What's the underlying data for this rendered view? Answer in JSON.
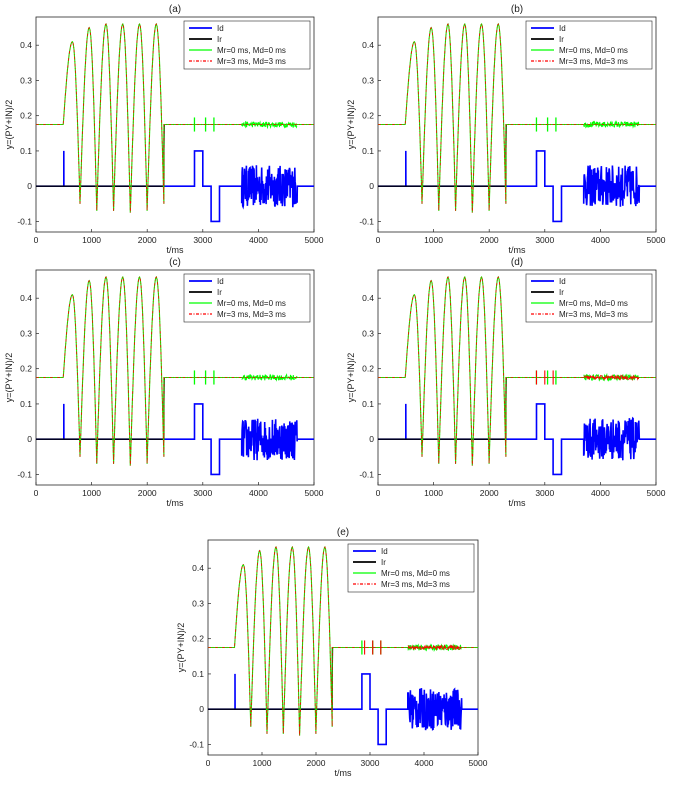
{
  "chart_data": {
    "type": "line",
    "shared": {
      "xlabel": "t/ms",
      "ylabel": "y=(PY+IN)/2",
      "xlim": [
        0,
        5000
      ],
      "ylim": [
        -0.13,
        0.48
      ],
      "xticks": [
        0,
        1000,
        2000,
        3000,
        4000,
        5000
      ],
      "xtick_labels": [
        "0",
        "1000",
        "2000",
        "3000",
        "4000",
        "5000"
      ],
      "yticks": [
        -0.1,
        0,
        0.1,
        0.2,
        0.3,
        0.4
      ],
      "ytick_labels": [
        "-0.1",
        "0",
        "0.1",
        "0.2",
        "0.3",
        "0.4"
      ],
      "legend_position": "top-right",
      "baseline_level": 0.175,
      "series": [
        {
          "name": "Id",
          "color": "#0000ff",
          "style": "solid"
        },
        {
          "name": "Ir",
          "color": "#000000",
          "style": "solid"
        },
        {
          "name": "Mr=0 ms, Md=0 ms",
          "color": "#00ff00",
          "style": "solid"
        },
        {
          "name": "Mr=3 ms, Md=3 ms",
          "color": "#ff0000",
          "style": "dash-dot"
        }
      ],
      "bursts": [
        {
          "start": 0,
          "end": 490,
          "kind": "baseline"
        },
        {
          "start": 490,
          "end": 2300,
          "kind": "oscillation",
          "peaks": [
            0.41,
            0.45,
            0.46,
            0.46,
            0.46,
            0.46
          ],
          "troughs": [
            -0.05,
            -0.07,
            -0.07,
            -0.075,
            -0.07,
            -0.05
          ]
        },
        {
          "start": 2300,
          "end": 4710,
          "kind": "return-to-baseline"
        }
      ],
      "id_signal": {
        "pulse_at": 500,
        "pulse_height": 0.1,
        "pos_step": {
          "start": 2850,
          "end": 3000,
          "value": 0.1
        },
        "neg_step": {
          "start": 3150,
          "end": 3300,
          "value": -0.1
        },
        "noise": {
          "start": 3700,
          "end": 4700,
          "amplitude": 0.06
        }
      }
    },
    "panels": [
      {
        "title": "(a)",
        "green_spikes": [
          2850,
          3050,
          3200
        ],
        "red_spikes": []
      },
      {
        "title": "(b)",
        "green_spikes": [
          2850,
          3050,
          3200
        ],
        "red_spikes": []
      },
      {
        "title": "(c)",
        "green_spikes": [
          2850,
          3050,
          3200
        ],
        "red_spikes": []
      },
      {
        "title": "(d)",
        "green_spikes": [
          2850,
          3050,
          3200
        ],
        "red_spikes": [
          2850,
          3000,
          3150
        ]
      },
      {
        "title": "(e)",
        "green_spikes": [
          2850,
          3050,
          3200
        ],
        "red_spikes": [
          2900,
          3050,
          3200
        ]
      }
    ]
  }
}
